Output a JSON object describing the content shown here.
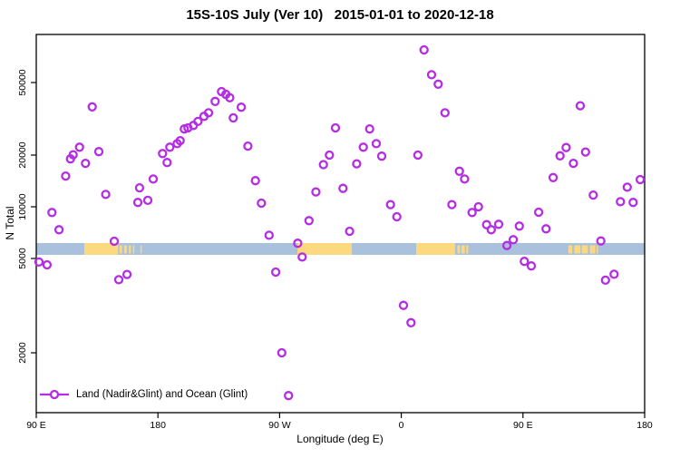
{
  "title": "15S-10S July (Ver 10)   2015-01-01 to 2020-12-18",
  "legend": {
    "label": "Land (Nadir&Glint) and Ocean (Glint)"
  },
  "colors": {
    "point": "#b42ce4",
    "ocean_band": "#a9c1dc",
    "land_band": "#fcd87e",
    "axis": "#000000",
    "background": "#ffffff"
  },
  "chart_data": {
    "type": "scatter",
    "title": "15S-10S July (Ver 10)   2015-01-01 to 2020-12-18",
    "xlabel": "Longitude (deg E)",
    "ylabel": "N Total",
    "y_scale": "log",
    "xlim": [
      90,
      540
    ],
    "x_axis_note": "longitude increases eastward from 90E and wraps 450 degrees: 90E,180,90W,0,90E,180",
    "x_ticks": [
      {
        "pos": 90,
        "label": "90 E"
      },
      {
        "pos": 180,
        "label": "180"
      },
      {
        "pos": 270,
        "label": "90 W"
      },
      {
        "pos": 360,
        "label": "0"
      },
      {
        "pos": 450,
        "label": "90 E"
      },
      {
        "pos": 540,
        "label": "180"
      }
    ],
    "y_ticks": [
      {
        "value": 2000,
        "label": "2000"
      },
      {
        "value": 5000,
        "label": "5000"
      },
      {
        "value": 10000,
        "label": "10000"
      },
      {
        "value": 20000,
        "label": "20000"
      },
      {
        "value": 50000,
        "label": "50000"
      }
    ],
    "legend_label": "Land (Nadir&Glint) and Ocean (Glint)",
    "map_band": {
      "description": "15S-10S latitude world-map strip: blue = ocean, yellow = land",
      "n_top": 6150,
      "n_bottom": 5250,
      "land_segments": [
        {
          "from": 125.5,
          "to": 150.5,
          "style": "solid"
        },
        {
          "from": 151.5,
          "to": 153.5,
          "style": "speckle"
        },
        {
          "from": 155.0,
          "to": 157.0,
          "style": "speckle"
        },
        {
          "from": 158.5,
          "to": 160.0,
          "style": "speckle"
        },
        {
          "from": 161.5,
          "to": 162.5,
          "style": "speckle"
        },
        {
          "from": 167.0,
          "to": 167.8,
          "style": "speckle"
        },
        {
          "from": 283.2,
          "to": 323.4,
          "style": "solid"
        },
        {
          "from": 371.0,
          "to": 399.8,
          "style": "solid"
        },
        {
          "from": 401.5,
          "to": 403.5,
          "style": "speckle"
        },
        {
          "from": 404.5,
          "to": 407.0,
          "style": "speckle"
        },
        {
          "from": 408.0,
          "to": 409.5,
          "style": "speckle"
        },
        {
          "from": 483.5,
          "to": 486.5,
          "style": "speckle"
        },
        {
          "from": 488.0,
          "to": 492.5,
          "style": "speckle"
        },
        {
          "from": 493.5,
          "to": 498.0,
          "style": "speckle"
        },
        {
          "from": 499.5,
          "to": 503.5,
          "style": "speckle"
        },
        {
          "from": 504.5,
          "to": 505.5,
          "style": "speckle"
        }
      ]
    },
    "points": [
      {
        "x": 131.4,
        "n": 36800
      },
      {
        "x": 122.0,
        "n": 22100
      },
      {
        "x": 136.3,
        "n": 20900
      },
      {
        "x": 117.3,
        "n": 20100
      },
      {
        "x": 115.3,
        "n": 19000
      },
      {
        "x": 126.4,
        "n": 17900
      },
      {
        "x": 111.7,
        "n": 15100
      },
      {
        "x": 141.4,
        "n": 11800
      },
      {
        "x": 101.6,
        "n": 9260
      },
      {
        "x": 106.8,
        "n": 7350
      },
      {
        "x": 147.7,
        "n": 6300
      },
      {
        "x": 92.0,
        "n": 4830
      },
      {
        "x": 98.0,
        "n": 4700
      },
      {
        "x": 157.1,
        "n": 4280
      },
      {
        "x": 151.0,
        "n": 4070
      },
      {
        "x": 166.4,
        "n": 12900
      },
      {
        "x": 165.1,
        "n": 10600
      },
      {
        "x": 172.5,
        "n": 10900
      },
      {
        "x": 176.5,
        "n": 14500
      },
      {
        "x": 186.8,
        "n": 18100
      },
      {
        "x": 183.4,
        "n": 20400
      },
      {
        "x": 188.8,
        "n": 22100
      },
      {
        "x": 194.2,
        "n": 23100
      },
      {
        "x": 196.4,
        "n": 24000
      },
      {
        "x": 199.5,
        "n": 27800
      },
      {
        "x": 202.2,
        "n": 28200
      },
      {
        "x": 206.2,
        "n": 29100
      },
      {
        "x": 209.6,
        "n": 30600
      },
      {
        "x": 214.1,
        "n": 32600
      },
      {
        "x": 217.4,
        "n": 34100
      },
      {
        "x": 222.3,
        "n": 39400
      },
      {
        "x": 227.0,
        "n": 44600
      },
      {
        "x": 230.2,
        "n": 43100
      },
      {
        "x": 233.1,
        "n": 41300
      },
      {
        "x": 235.7,
        "n": 32000
      },
      {
        "x": 241.6,
        "n": 36600
      },
      {
        "x": 246.5,
        "n": 22400
      },
      {
        "x": 252.1,
        "n": 14200
      },
      {
        "x": 256.5,
        "n": 10500
      },
      {
        "x": 262.2,
        "n": 6830
      },
      {
        "x": 267.1,
        "n": 4380
      },
      {
        "x": 271.6,
        "n": 2000
      },
      {
        "x": 276.6,
        "n": 1320
      },
      {
        "x": 283.4,
        "n": 6130
      },
      {
        "x": 286.7,
        "n": 5100
      },
      {
        "x": 291.7,
        "n": 8300
      },
      {
        "x": 296.8,
        "n": 12200
      },
      {
        "x": 302.4,
        "n": 17600
      },
      {
        "x": 306.8,
        "n": 20000
      },
      {
        "x": 311.3,
        "n": 28200
      },
      {
        "x": 376.8,
        "n": 75500
      },
      {
        "x": 382.4,
        "n": 55200
      },
      {
        "x": 387.3,
        "n": 49000
      },
      {
        "x": 336.6,
        "n": 27800
      },
      {
        "x": 341.5,
        "n": 23100
      },
      {
        "x": 331.9,
        "n": 22100
      },
      {
        "x": 345.5,
        "n": 19700
      },
      {
        "x": 372.3,
        "n": 20000
      },
      {
        "x": 327.0,
        "n": 17800
      },
      {
        "x": 316.9,
        "n": 12800
      },
      {
        "x": 352.0,
        "n": 10300
      },
      {
        "x": 356.7,
        "n": 8750
      },
      {
        "x": 321.8,
        "n": 7200
      },
      {
        "x": 361.6,
        "n": 3170
      },
      {
        "x": 367.2,
        "n": 2680
      },
      {
        "x": 392.3,
        "n": 34100
      },
      {
        "x": 403.0,
        "n": 16100
      },
      {
        "x": 406.8,
        "n": 14500
      },
      {
        "x": 397.4,
        "n": 10300
      },
      {
        "x": 412.4,
        "n": 9260
      },
      {
        "x": 417.1,
        "n": 10000
      },
      {
        "x": 423.1,
        "n": 7870
      },
      {
        "x": 426.5,
        "n": 7350
      },
      {
        "x": 432.0,
        "n": 7910
      },
      {
        "x": 447.3,
        "n": 7720
      },
      {
        "x": 442.8,
        "n": 6430
      },
      {
        "x": 438.1,
        "n": 5950
      },
      {
        "x": 451.0,
        "n": 4860
      },
      {
        "x": 456.2,
        "n": 4650
      },
      {
        "x": 461.6,
        "n": 9300
      },
      {
        "x": 492.4,
        "n": 37300
      },
      {
        "x": 481.9,
        "n": 22000
      },
      {
        "x": 477.4,
        "n": 19800
      },
      {
        "x": 496.3,
        "n": 20800
      },
      {
        "x": 487.3,
        "n": 17900
      },
      {
        "x": 472.3,
        "n": 14800
      },
      {
        "x": 536.7,
        "n": 14400
      },
      {
        "x": 527.1,
        "n": 13000
      },
      {
        "x": 502.0,
        "n": 11700
      },
      {
        "x": 522.1,
        "n": 10700
      },
      {
        "x": 531.5,
        "n": 10600
      },
      {
        "x": 467.1,
        "n": 7440
      },
      {
        "x": 507.6,
        "n": 6320
      },
      {
        "x": 517.4,
        "n": 4290
      },
      {
        "x": 511.0,
        "n": 4050
      }
    ]
  }
}
